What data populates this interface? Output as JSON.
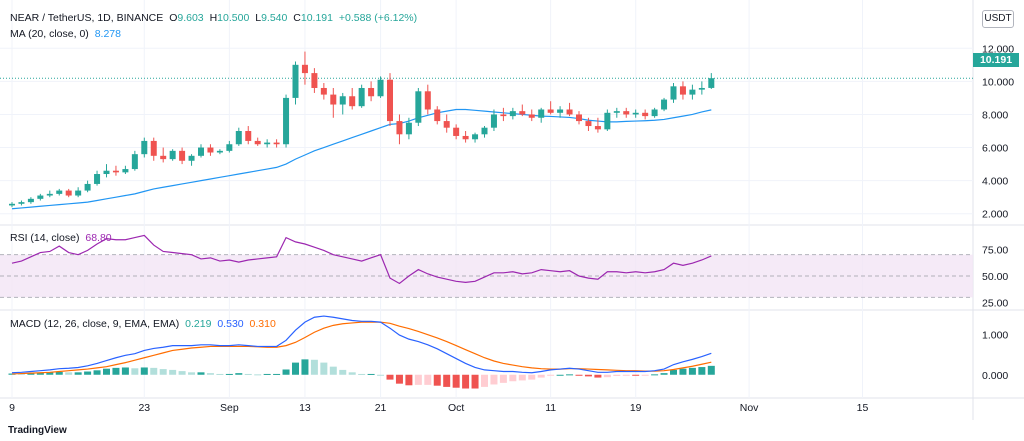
{
  "header": {
    "symbol": "NEAR / TetherUS, 1D, BINANCE",
    "ohlc": [
      {
        "key": "O",
        "value": "9.603"
      },
      {
        "key": "H",
        "value": "10.500"
      },
      {
        "key": "L",
        "value": "9.540"
      },
      {
        "key": "C",
        "value": "10.191"
      }
    ],
    "change": "+0.588 (+6.12%)",
    "ma_label": "MA (20, close, 0)",
    "ma_value": "8.278",
    "currency_button": "USDT",
    "last_price": "10.191",
    "branding": "TradingView"
  },
  "chart_data": [
    {
      "type": "candlestick",
      "title": "NEAR / TetherUS, 1D, BINANCE",
      "x_labels": [
        "9",
        "23",
        "Sep",
        "13",
        "21",
        "Oct",
        "11",
        "19",
        "Nov",
        "15"
      ],
      "y_ticks": [
        "12.000",
        "10.000",
        "8.000",
        "6.000",
        "4.000",
        "2.000"
      ],
      "ylim": [
        1.5,
        12.5
      ],
      "up_color": "#26a69a",
      "down_color": "#ef5350",
      "last_price": 10.191,
      "candles": [
        [
          2.5,
          2.7,
          2.4,
          2.6
        ],
        [
          2.6,
          2.8,
          2.5,
          2.7
        ],
        [
          2.7,
          3.0,
          2.6,
          2.9
        ],
        [
          2.9,
          3.2,
          2.8,
          3.1
        ],
        [
          3.1,
          3.4,
          3.0,
          3.2
        ],
        [
          3.2,
          3.5,
          3.1,
          3.4
        ],
        [
          3.4,
          3.5,
          3.0,
          3.1
        ],
        [
          3.1,
          3.6,
          3.0,
          3.4
        ],
        [
          3.4,
          4.0,
          3.3,
          3.8
        ],
        [
          3.8,
          4.6,
          3.7,
          4.4
        ],
        [
          4.4,
          5.0,
          4.2,
          4.6
        ],
        [
          4.6,
          4.9,
          4.3,
          4.5
        ],
        [
          4.5,
          4.9,
          4.4,
          4.7
        ],
        [
          4.7,
          5.8,
          4.6,
          5.6
        ],
        [
          5.6,
          6.6,
          5.4,
          6.4
        ],
        [
          6.4,
          6.6,
          5.2,
          5.5
        ],
        [
          5.5,
          6.0,
          5.1,
          5.3
        ],
        [
          5.3,
          5.9,
          5.2,
          5.8
        ],
        [
          5.8,
          6.0,
          5.0,
          5.2
        ],
        [
          5.2,
          5.6,
          4.9,
          5.5
        ],
        [
          5.5,
          6.2,
          5.4,
          6.0
        ],
        [
          6.0,
          6.2,
          5.5,
          5.7
        ],
        [
          5.7,
          5.9,
          5.6,
          5.8
        ],
        [
          5.8,
          6.4,
          5.7,
          6.2
        ],
        [
          6.2,
          7.2,
          6.1,
          7.0
        ],
        [
          7.0,
          7.3,
          6.2,
          6.4
        ],
        [
          6.4,
          6.6,
          6.1,
          6.2
        ],
        [
          6.2,
          6.5,
          6.0,
          6.3
        ],
        [
          6.3,
          6.5,
          6.0,
          6.2
        ],
        [
          6.2,
          9.2,
          6.0,
          9.0
        ],
        [
          9.0,
          11.2,
          8.6,
          11.0
        ],
        [
          11.0,
          11.8,
          9.8,
          10.5
        ],
        [
          10.5,
          10.8,
          9.3,
          9.6
        ],
        [
          9.6,
          9.9,
          8.9,
          9.2
        ],
        [
          9.2,
          9.6,
          7.8,
          8.6
        ],
        [
          8.6,
          9.3,
          8.0,
          9.1
        ],
        [
          9.1,
          9.6,
          8.3,
          8.5
        ],
        [
          8.5,
          9.8,
          8.4,
          9.6
        ],
        [
          9.6,
          10.0,
          8.8,
          9.1
        ],
        [
          9.1,
          10.3,
          9.0,
          10.1
        ],
        [
          10.1,
          10.5,
          7.3,
          7.6
        ],
        [
          7.6,
          8.0,
          6.2,
          6.8
        ],
        [
          6.8,
          7.8,
          6.5,
          7.5
        ],
        [
          7.5,
          9.6,
          7.3,
          9.4
        ],
        [
          9.4,
          9.8,
          8.0,
          8.3
        ],
        [
          8.3,
          8.5,
          7.4,
          7.6
        ],
        [
          7.6,
          8.0,
          6.9,
          7.2
        ],
        [
          7.2,
          7.4,
          6.5,
          6.7
        ],
        [
          6.7,
          7.0,
          6.3,
          6.5
        ],
        [
          6.5,
          6.9,
          6.3,
          6.8
        ],
        [
          6.8,
          7.3,
          6.6,
          7.2
        ],
        [
          7.2,
          8.3,
          7.0,
          8.0
        ],
        [
          8.0,
          8.4,
          7.6,
          7.9
        ],
        [
          7.9,
          8.4,
          7.7,
          8.2
        ],
        [
          8.2,
          8.6,
          7.9,
          8.0
        ],
        [
          8.0,
          8.3,
          7.6,
          7.8
        ],
        [
          7.8,
          8.4,
          7.5,
          8.3
        ],
        [
          8.3,
          8.8,
          8.0,
          8.1
        ],
        [
          8.1,
          8.5,
          7.8,
          8.3
        ],
        [
          8.3,
          8.7,
          7.9,
          8.0
        ],
        [
          8.0,
          8.2,
          7.4,
          7.6
        ],
        [
          7.6,
          7.8,
          7.0,
          7.3
        ],
        [
          7.3,
          7.8,
          6.9,
          7.1
        ],
        [
          7.1,
          8.3,
          7.0,
          8.1
        ],
        [
          8.1,
          8.4,
          7.8,
          8.2
        ],
        [
          8.2,
          8.4,
          7.8,
          8.0
        ],
        [
          8.0,
          8.3,
          7.8,
          8.1
        ],
        [
          8.1,
          8.3,
          7.7,
          7.9
        ],
        [
          7.9,
          8.4,
          7.8,
          8.3
        ],
        [
          8.3,
          9.0,
          8.2,
          8.9
        ],
        [
          8.9,
          9.9,
          8.7,
          9.7
        ],
        [
          9.7,
          10.0,
          8.9,
          9.2
        ],
        [
          9.2,
          9.8,
          8.9,
          9.5
        ],
        [
          9.5,
          10.0,
          9.2,
          9.6
        ],
        [
          9.603,
          10.5,
          9.54,
          10.191
        ]
      ]
    },
    {
      "type": "line",
      "title": "RSI (14, close)",
      "value": "68.80",
      "y_ticks": [
        "75.00",
        "50.00",
        "25.00"
      ],
      "ylim": [
        20,
        95
      ],
      "band": [
        30,
        70
      ],
      "midline": 50,
      "color": "#9c27b0",
      "values": [
        62,
        64,
        68,
        72,
        73,
        78,
        72,
        70,
        74,
        80,
        85,
        84,
        84,
        86,
        88,
        79,
        73,
        72,
        71,
        70,
        66,
        67,
        64,
        65,
        63,
        65,
        66,
        67,
        68,
        86,
        82,
        80,
        77,
        74,
        70,
        68,
        66,
        64,
        67,
        70,
        48,
        43,
        50,
        56,
        52,
        49,
        47,
        45,
        44,
        45,
        49,
        53,
        53,
        54,
        52,
        53,
        56,
        55,
        54,
        55,
        50,
        48,
        47,
        54,
        54,
        53,
        54,
        53,
        54,
        56,
        62,
        60,
        62,
        65,
        68.8
      ]
    },
    {
      "type": "bar+line",
      "title": "MACD (12, 26, close, 9, EMA, EMA)",
      "values_shown": {
        "histogram": "0.219",
        "macd": "0.530",
        "signal": "0.310"
      },
      "y_ticks": [
        "1.000",
        "0.000"
      ],
      "ylim": [
        -0.5,
        1.55
      ],
      "macd_color": "#2962ff",
      "signal_color": "#ff6d00",
      "macd": [
        0.05,
        0.06,
        0.08,
        0.1,
        0.12,
        0.15,
        0.16,
        0.18,
        0.22,
        0.28,
        0.35,
        0.42,
        0.48,
        0.52,
        0.6,
        0.65,
        0.68,
        0.72,
        0.72,
        0.72,
        0.74,
        0.74,
        0.72,
        0.72,
        0.74,
        0.72,
        0.7,
        0.7,
        0.7,
        0.85,
        1.1,
        1.3,
        1.42,
        1.45,
        1.42,
        1.38,
        1.34,
        1.32,
        1.32,
        1.3,
        1.15,
        0.98,
        0.88,
        0.82,
        0.74,
        0.64,
        0.52,
        0.4,
        0.28,
        0.18,
        0.12,
        0.1,
        0.08,
        0.08,
        0.06,
        0.05,
        0.08,
        0.12,
        0.14,
        0.16,
        0.14,
        0.1,
        0.06,
        0.06,
        0.08,
        0.08,
        0.08,
        0.08,
        0.1,
        0.14,
        0.25,
        0.32,
        0.38,
        0.45,
        0.53
      ],
      "signal": [
        0.02,
        0.03,
        0.04,
        0.05,
        0.06,
        0.08,
        0.1,
        0.12,
        0.14,
        0.17,
        0.2,
        0.25,
        0.3,
        0.36,
        0.42,
        0.48,
        0.54,
        0.6,
        0.63,
        0.66,
        0.68,
        0.7,
        0.7,
        0.7,
        0.7,
        0.7,
        0.69,
        0.68,
        0.68,
        0.72,
        0.8,
        0.92,
        1.05,
        1.15,
        1.22,
        1.26,
        1.28,
        1.3,
        1.3,
        1.3,
        1.27,
        1.2,
        1.14,
        1.07,
        0.99,
        0.91,
        0.82,
        0.72,
        0.62,
        0.52,
        0.42,
        0.34,
        0.28,
        0.24,
        0.2,
        0.17,
        0.15,
        0.14,
        0.14,
        0.15,
        0.15,
        0.14,
        0.13,
        0.12,
        0.11,
        0.1,
        0.1,
        0.09,
        0.09,
        0.1,
        0.13,
        0.17,
        0.21,
        0.26,
        0.31
      ]
    }
  ],
  "ma": [
    2.3,
    2.35,
    2.4,
    2.45,
    2.5,
    2.55,
    2.6,
    2.65,
    2.7,
    2.8,
    2.9,
    3.0,
    3.1,
    3.2,
    3.35,
    3.5,
    3.6,
    3.7,
    3.8,
    3.9,
    4.0,
    4.1,
    4.2,
    4.3,
    4.4,
    4.5,
    4.6,
    4.7,
    4.8,
    5.0,
    5.3,
    5.55,
    5.8,
    6.0,
    6.2,
    6.4,
    6.6,
    6.8,
    7.0,
    7.2,
    7.4,
    7.45,
    7.6,
    7.8,
    7.95,
    8.1,
    8.2,
    8.3,
    8.3,
    8.25,
    8.2,
    8.15,
    8.1,
    8.05,
    8.0,
    7.95,
    7.9,
    7.88,
    7.85,
    7.82,
    7.75,
    7.65,
    7.6,
    7.55,
    7.55,
    7.58,
    7.6,
    7.62,
    7.65,
    7.7,
    7.8,
    7.9,
    8.0,
    8.15,
    8.278
  ]
}
